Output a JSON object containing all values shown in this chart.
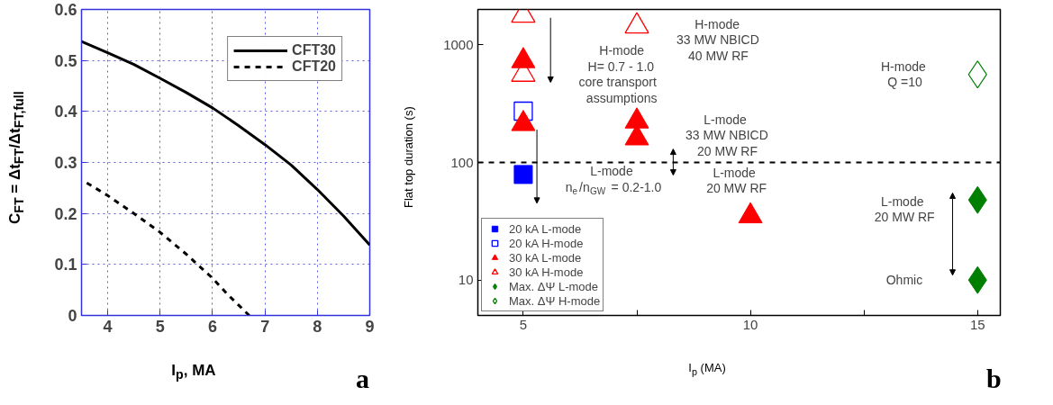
{
  "chart_data": [
    {
      "type": "line",
      "xlabel": "I$_{p}$, MA",
      "ylabel": "C$_{FT}$ = Δt$_{FT}$/Δt$_{FT,full}$",
      "xlim": [
        3.5,
        9
      ],
      "ylim": [
        0,
        0.6
      ],
      "xticks": [
        4,
        5,
        6,
        7,
        8,
        9
      ],
      "yticks": [
        0,
        0.1,
        0.2,
        0.3,
        0.4,
        0.5,
        0.6
      ],
      "grid": true,
      "legend": "top right",
      "marker": "none",
      "series": [
        {
          "name": "CFT30",
          "color": "#000000",
          "line_style": "solid",
          "x": [
            3.5,
            4,
            4.5,
            5,
            5.5,
            6,
            6.5,
            7,
            7.5,
            8,
            8.5,
            9
          ],
          "values": [
            0.537,
            0.515,
            0.492,
            0.465,
            0.437,
            0.407,
            0.372,
            0.335,
            0.295,
            0.247,
            0.195,
            0.138
          ]
        },
        {
          "name": "CFT20",
          "color": "#000000",
          "line_style": "dashed",
          "x": [
            3.6,
            4,
            4.5,
            5,
            5.5,
            6,
            6.3,
            6.7
          ],
          "values": [
            0.26,
            0.235,
            0.2,
            0.163,
            0.12,
            0.073,
            0.04,
            0
          ]
        }
      ],
      "annotations": [
        "a"
      ]
    },
    {
      "type": "scatter",
      "xlabel": "I$_{p}$ (MA)",
      "ylabel": "Flat top duration (s)",
      "log": "y",
      "xlim": [
        4,
        15.5
      ],
      "ylim": [
        5,
        2000
      ],
      "xticks": [
        5,
        {
          "value": 7.5,
          "label": null
        },
        10,
        {
          "value": 12.5,
          "label": null
        },
        15
      ],
      "yticks": [
        10,
        100,
        1000
      ],
      "grid": false,
      "legend": "bottom left",
      "series": [
        {
          "name": "20 kA L-mode",
          "color": "#0000ff",
          "marker": "square",
          "x": [
            5
          ],
          "values": [
            79
          ]
        },
        {
          "name": "20 kA H-mode",
          "color": "#0000ff",
          "marker": "square",
          "x": [
            5
          ],
          "values": [
            273
          ]
        },
        {
          "name": "30 kA L-mode",
          "color": "#ff0000",
          "marker": "triangle",
          "x": [
            5,
            5,
            7.5,
            7.5,
            10
          ],
          "values": [
            730,
            213,
            224,
            161,
            35
          ]
        },
        {
          "name": "30 kA H-mode",
          "color": "#ff0000",
          "marker": "triangle",
          "x": [
            5,
            5,
            7.5
          ],
          "values": [
            1780,
            560,
            1440
          ]
        },
        {
          "name": "Max. ΔΨ L-mode",
          "color": "#007f00",
          "marker": "diamond",
          "x": [
            15,
            15
          ],
          "values": [
            48,
            10
          ]
        },
        {
          "name": "Max. ΔΨ H-mode",
          "color": "#007f00",
          "marker": "diamond",
          "x": [
            15
          ],
          "values": [
            560
          ]
        }
      ],
      "ref_lines": [
        {
          "axis": "y",
          "value": 100,
          "label": null,
          "line_style": "dashed",
          "color": "#000000"
        }
      ],
      "annotations": [
        "H-mode\nH= 0.7 - 1.0\ncore transport\nassumptions",
        "H-mode\n33 MW NBICD\n40 MW RF",
        "H-mode\nQ =10",
        "L-mode\n33 MW NBICD\n20 MW RF",
        "L-mode\nn$_{e}$/n$_{GW}$ = 0.2-1.0",
        "L-mode\n20 MW RF",
        "L-mode\n20 MW RF",
        "Ohmic",
        "b"
      ]
    }
  ]
}
